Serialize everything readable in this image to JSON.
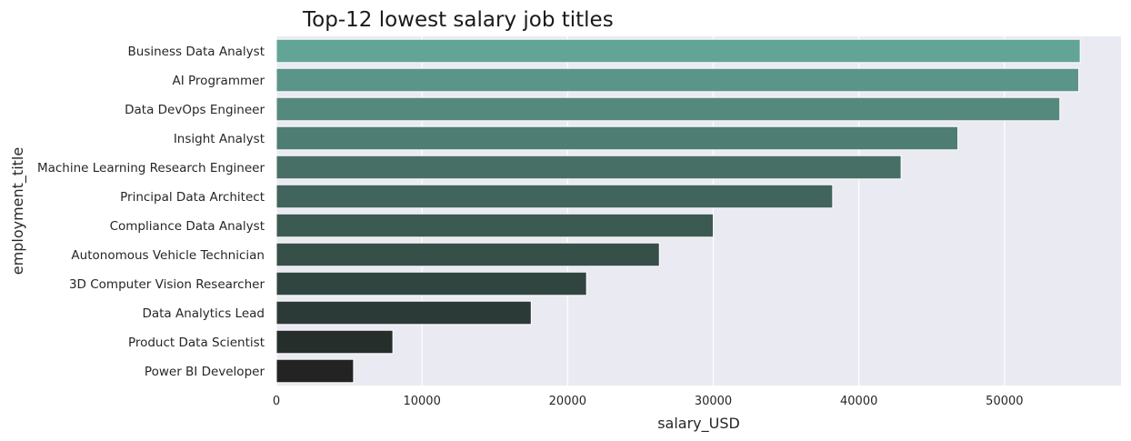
{
  "chart_data": {
    "type": "bar",
    "orientation": "horizontal",
    "title": "Top-12 lowest salary job titles",
    "xlabel": "salary_USD",
    "ylabel": "employment_title",
    "xlim": [
      0,
      58000
    ],
    "xticks": [
      0,
      10000,
      20000,
      30000,
      40000,
      50000
    ],
    "grid": true,
    "categories": [
      "Business Data Analyst",
      "AI Programmer",
      "Data DevOps Engineer",
      "Insight Analyst",
      "Machine Learning Research Engineer",
      "Principal Data Architect",
      "Compliance Data Analyst",
      "Autonomous Vehicle Technician",
      "3D Computer Vision Researcher",
      "Data Analytics Lead",
      "Product Data Scientist",
      "Power BI Developer"
    ],
    "values": [
      55200,
      55100,
      53800,
      46800,
      42900,
      38200,
      30000,
      26300,
      21300,
      17500,
      8000,
      5300
    ],
    "colors": [
      "#62a597",
      "#5b9589",
      "#55897d",
      "#4e7d73",
      "#476f66",
      "#41645c",
      "#3b5a52",
      "#364f49",
      "#304540",
      "#2b3a36",
      "#262e2c",
      "#222322"
    ],
    "background": "#eaeaf2"
  }
}
